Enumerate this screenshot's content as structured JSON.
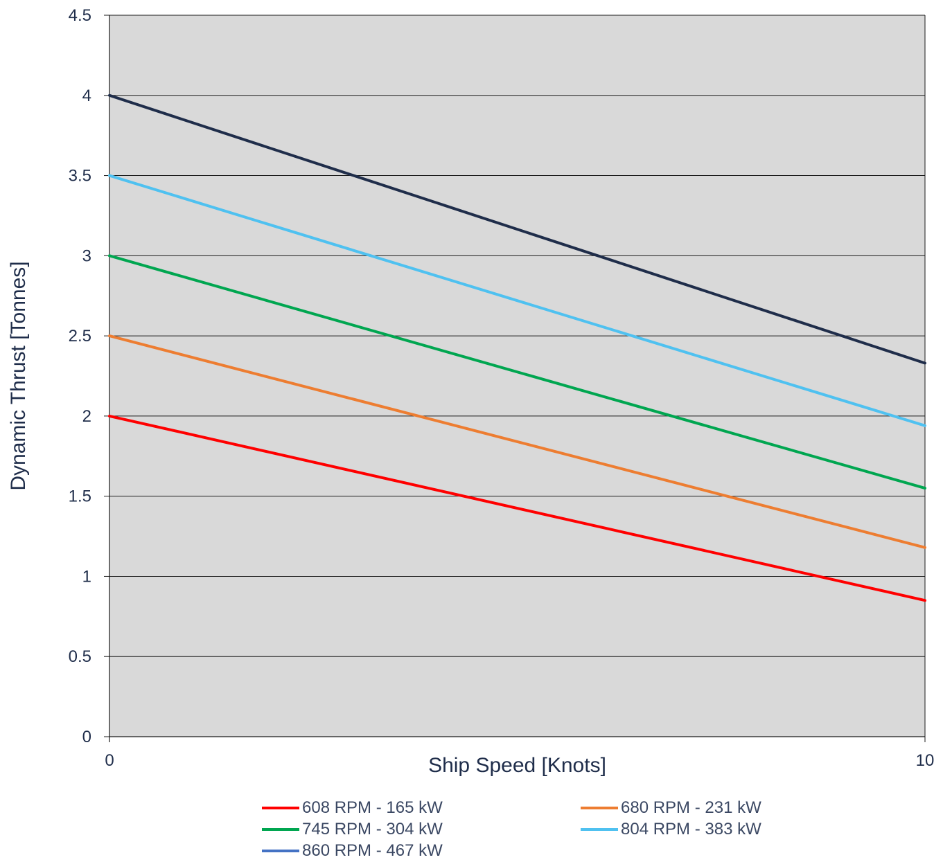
{
  "chart_data": {
    "type": "line",
    "title": "",
    "xlabel": "Ship Speed [Knots]",
    "ylabel": "Dynamic Thrust [Tonnes]",
    "xlim": [
      0,
      10
    ],
    "ylim": [
      0,
      4.5
    ],
    "x_ticks": [
      "0",
      "10"
    ],
    "y_ticks": [
      "0",
      "0.5",
      "1",
      "1.5",
      "2",
      "2.5",
      "3",
      "3.5",
      "4",
      "4.5"
    ],
    "grid": "horizontal",
    "plot_background": "#d9d9d9",
    "legend_position": "bottom",
    "series": [
      {
        "name": "608 RPM - 165 kW",
        "color": "#ff0000",
        "x": [
          0,
          10
        ],
        "y": [
          2.0,
          0.85
        ]
      },
      {
        "name": "680 RPM - 231 kW",
        "color": "#ed7d31",
        "x": [
          0,
          10
        ],
        "y": [
          2.5,
          1.18
        ]
      },
      {
        "name": "745 RPM - 304 kW",
        "color": "#00a650",
        "x": [
          0,
          10
        ],
        "y": [
          3.0,
          1.55
        ]
      },
      {
        "name": "804 RPM - 383 kW",
        "color": "#4fc1f0",
        "x": [
          0,
          10
        ],
        "y": [
          3.5,
          1.94
        ]
      },
      {
        "name": "860 RPM - 467 kW",
        "color": "#4472c4",
        "legend_only": true
      },
      {
        "name": "",
        "color": "#1f2d4a",
        "x": [
          0,
          10
        ],
        "y": [
          4.0,
          2.33
        ]
      }
    ]
  }
}
